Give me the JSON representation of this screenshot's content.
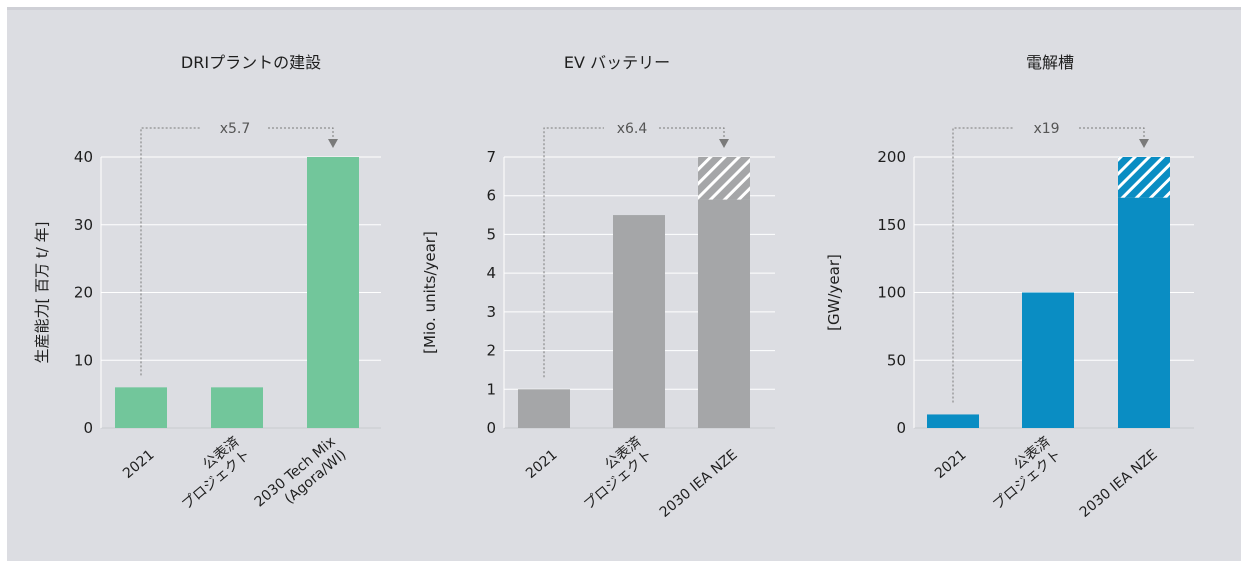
{
  "chart_data": [
    {
      "type": "bar",
      "title": "DRIプラントの建設",
      "ylabel": "生産能力[ 百万 t/ 年]",
      "ylim": [
        0,
        40
      ],
      "yticks": [
        0,
        10,
        20,
        30,
        40
      ],
      "categories": [
        [
          "2021"
        ],
        [
          "公表済",
          "プロジェクト"
        ],
        [
          "2030 Tech Mix",
          "(Agora/WI)"
        ]
      ],
      "values": [
        6,
        6,
        40
      ],
      "hatched_extra": [
        0,
        0,
        0
      ],
      "color": "#72c69b",
      "multiplier": "x5.7"
    },
    {
      "type": "bar",
      "title": "EV バッテリー",
      "ylabel": "[Mio. units/year]",
      "ylim": [
        0,
        7
      ],
      "yticks": [
        0,
        1,
        2,
        3,
        4,
        5,
        6,
        7
      ],
      "categories": [
        [
          "2021"
        ],
        [
          "公表済",
          "プロジェクト"
        ],
        [
          "2030 IEA NZE"
        ]
      ],
      "values": [
        1,
        5.5,
        5.9
      ],
      "hatched_extra": [
        0,
        0,
        1.1
      ],
      "color": "#a5a6a8",
      "multiplier": "x6.4"
    },
    {
      "type": "bar",
      "title": "電解槽",
      "ylabel": "[GW/year]",
      "ylim": [
        0,
        200
      ],
      "yticks": [
        0,
        50,
        100,
        150,
        200
      ],
      "categories": [
        [
          "2021"
        ],
        [
          "公表済",
          "プロジェクト"
        ],
        [
          "2030 IEA NZE"
        ]
      ],
      "values": [
        10,
        100,
        170
      ],
      "hatched_extra": [
        0,
        0,
        30
      ],
      "color": "#0a8dc3",
      "multiplier": "x19"
    }
  ]
}
